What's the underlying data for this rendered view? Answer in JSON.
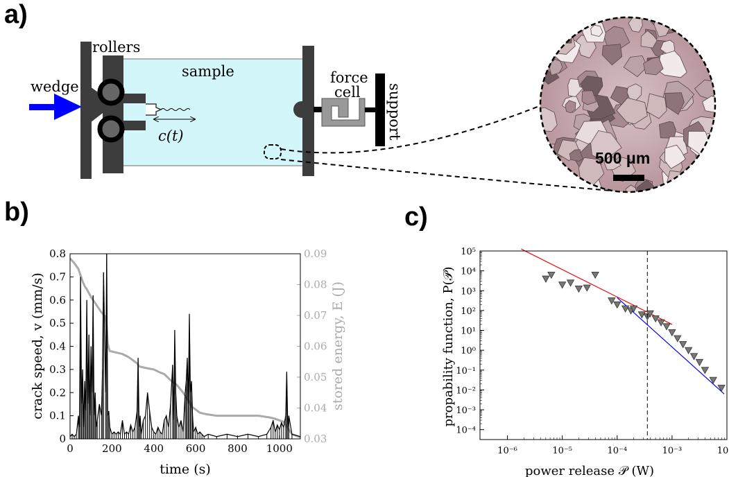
{
  "panels": {
    "a": {
      "label": "a)",
      "rollers": "rollers",
      "sample": "sample",
      "wedge": "wedge",
      "force_cell_line1": "force",
      "force_cell_line2": "cell",
      "support": "support",
      "crack_length": "c(t)",
      "scale_bar": "500 μm",
      "colors": {
        "sample": "#d3f6fb",
        "arrow": "#0000ff",
        "frame": "#3d3d3d",
        "force_cell": "#999999"
      }
    },
    "b": {
      "label": "b)"
    },
    "c": {
      "label": "c)"
    }
  },
  "chart_data": [
    {
      "panel": "b",
      "type": "line",
      "xlabel": "time (s)",
      "ylabel_left": "crack speed, v (mm/s)",
      "ylabel_right": "stored energy, E (J)",
      "xlim": [
        0,
        1100
      ],
      "ylim_left": [
        0,
        0.8
      ],
      "ylim_right": [
        0.03,
        0.09
      ],
      "x_ticks": [
        "0",
        "200",
        "400",
        "600",
        "800",
        "1000"
      ],
      "y_ticks_left": [
        "0",
        "0.1",
        "0.2",
        "0.3",
        "0.4",
        "0.5",
        "0.6",
        "0.7",
        "0.8"
      ],
      "y_ticks_right": [
        "0.03",
        "0.04",
        "0.05",
        "0.06",
        "0.07",
        "0.08",
        "0.09"
      ],
      "series": [
        {
          "axis": "left",
          "color": "#000000",
          "t": [
            0,
            10,
            20,
            30,
            40,
            45,
            50,
            55,
            60,
            65,
            70,
            75,
            80,
            85,
            90,
            95,
            100,
            105,
            110,
            115,
            120,
            125,
            130,
            140,
            150,
            155,
            160,
            170,
            175,
            180,
            185,
            190,
            200,
            210,
            220,
            230,
            240,
            250,
            260,
            270,
            280,
            290,
            300,
            310,
            320,
            325,
            330,
            335,
            340,
            350,
            360,
            370,
            380,
            390,
            400,
            410,
            420,
            430,
            440,
            450,
            460,
            470,
            480,
            490,
            495,
            500,
            505,
            510,
            520,
            530,
            540,
            550,
            555,
            560,
            565,
            570,
            575,
            580,
            585,
            590,
            600,
            610,
            620,
            630,
            640,
            660,
            700,
            750,
            800,
            850,
            900,
            940,
            960,
            970,
            980,
            990,
            1000,
            1010,
            1020,
            1030,
            1035,
            1040,
            1045,
            1060,
            1100
          ],
          "v": [
            0.01,
            0.02,
            0.01,
            0.02,
            0.1,
            0.05,
            0.7,
            0.15,
            0.3,
            0.05,
            0.25,
            0.12,
            0.6,
            0.15,
            0.45,
            0.1,
            0.4,
            0.2,
            0.62,
            0.1,
            0.2,
            0.05,
            0.08,
            0.15,
            0.1,
            0.3,
            0.72,
            0.2,
            0.8,
            0.1,
            0.12,
            0.05,
            0.02,
            0.03,
            0.02,
            0.03,
            0.02,
            0.08,
            0.02,
            0.03,
            0.02,
            0.06,
            0.03,
            0.05,
            0.12,
            0.35,
            0.05,
            0.1,
            0.02,
            0.08,
            0.1,
            0.2,
            0.12,
            0.05,
            0.03,
            0.02,
            0.05,
            0.03,
            0.02,
            0.08,
            0.1,
            0.05,
            0.15,
            0.32,
            0.08,
            0.47,
            0.2,
            0.1,
            0.05,
            0.08,
            0.03,
            0.2,
            0.25,
            0.35,
            0.15,
            0.54,
            0.2,
            0.25,
            0.1,
            0.03,
            0.05,
            0.02,
            0.03,
            0.02,
            0.01,
            0.02,
            0.01,
            0.02,
            0.01,
            0.02,
            0.01,
            0.02,
            0.05,
            0.08,
            0.03,
            0.06,
            0.04,
            0.07,
            0.05,
            0.1,
            0.29,
            0.05,
            0.1,
            0.02,
            0.01
          ]
        },
        {
          "axis": "right",
          "color": "#aaaaaa",
          "t": [
            0,
            20,
            40,
            50,
            60,
            70,
            80,
            100,
            120,
            150,
            170,
            175,
            180,
            185,
            190,
            220,
            250,
            280,
            300,
            320,
            330,
            360,
            400,
            430,
            450,
            480,
            500,
            510,
            540,
            570,
            580,
            600,
            620,
            650,
            700,
            800,
            900,
            950,
            980,
            1000,
            1020,
            1030,
            1040,
            1060,
            1100
          ],
          "E": [
            0.0885,
            0.087,
            0.085,
            0.083,
            0.081,
            0.0795,
            0.0785,
            0.076,
            0.074,
            0.071,
            0.0695,
            0.0665,
            0.061,
            0.0595,
            0.0585,
            0.058,
            0.0575,
            0.0565,
            0.0555,
            0.0545,
            0.0535,
            0.053,
            0.0525,
            0.0515,
            0.051,
            0.049,
            0.048,
            0.0475,
            0.045,
            0.042,
            0.0405,
            0.0395,
            0.0385,
            0.038,
            0.0375,
            0.0375,
            0.0375,
            0.037,
            0.0365,
            0.036,
            0.0355,
            0.0345,
            0.0335,
            0.0315,
            0.0305
          ]
        }
      ]
    },
    {
      "panel": "c",
      "type": "scatter",
      "xscale": "log",
      "yscale": "log",
      "xlabel": "power release 𝒫 (W)",
      "ylabel": "propability function, P(𝒫)",
      "xlim_exp": [
        -6.5,
        -2
      ],
      "ylim_exp": [
        -4.5,
        5
      ],
      "x_tick_exponents": [
        -6,
        -5,
        -4,
        -3,
        -2
      ],
      "y_tick_exponents": [
        -4,
        -3,
        -2,
        -1,
        0,
        1,
        2,
        3,
        4,
        5
      ],
      "x_tick_labels": [
        "10⁻⁶",
        "10⁻⁵",
        "10⁻⁴",
        "10⁻³",
        "10⁻²"
      ],
      "y_tick_labels": [
        "10⁻⁴",
        "10⁻³",
        "10⁻²",
        "10⁻¹",
        "10⁰",
        "10¹",
        "10²",
        "10³",
        "10⁴",
        "10⁵"
      ],
      "vertical_line_exp": -3.45,
      "points": [
        {
          "x": -5.3,
          "y": 3.6
        },
        {
          "x": -5.2,
          "y": 3.8
        },
        {
          "x": -5.0,
          "y": 3.3
        },
        {
          "x": -4.85,
          "y": 3.4
        },
        {
          "x": -4.7,
          "y": 3.1
        },
        {
          "x": -4.55,
          "y": 3.15
        },
        {
          "x": -4.4,
          "y": 3.8
        },
        {
          "x": -4.1,
          "y": 2.5
        },
        {
          "x": -4.0,
          "y": 2.3
        },
        {
          "x": -3.85,
          "y": 2.1
        },
        {
          "x": -3.75,
          "y": 2.0
        },
        {
          "x": -3.7,
          "y": 2.1
        },
        {
          "x": -3.55,
          "y": 1.8
        },
        {
          "x": -3.45,
          "y": 1.7
        },
        {
          "x": -3.4,
          "y": 1.85
        },
        {
          "x": -3.3,
          "y": 1.6
        },
        {
          "x": -3.2,
          "y": 1.4
        },
        {
          "x": -3.1,
          "y": 1.2
        },
        {
          "x": -3.0,
          "y": 0.9
        },
        {
          "x": -2.9,
          "y": 0.6
        },
        {
          "x": -2.8,
          "y": 0.3
        },
        {
          "x": -2.7,
          "y": 0.0
        },
        {
          "x": -2.6,
          "y": -0.3
        },
        {
          "x": -2.5,
          "y": -0.6
        },
        {
          "x": -2.4,
          "y": -1.0
        },
        {
          "x": -2.25,
          "y": -1.5
        },
        {
          "x": -2.1,
          "y": -1.9
        }
      ],
      "fit_lines": [
        {
          "color": "#ff0000",
          "x_exp": [
            -5.75,
            -3.0
          ],
          "y_exp": [
            5.1,
            1.3
          ]
        },
        {
          "color": "#0000ff",
          "x_exp": [
            -4.0,
            -2.05
          ],
          "y_exp": [
            2.65,
            -2.2
          ]
        }
      ]
    }
  ]
}
